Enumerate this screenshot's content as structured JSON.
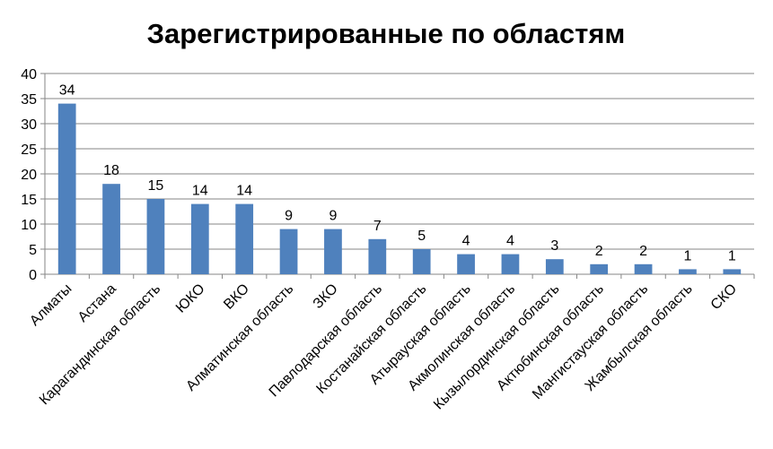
{
  "chart_data": {
    "type": "bar",
    "title": "Зарегистрированные по областям",
    "xlabel": "",
    "ylabel": "",
    "ylim": [
      0,
      40
    ],
    "yticks": [
      0,
      5,
      10,
      15,
      20,
      25,
      30,
      35,
      40
    ],
    "grid": true,
    "legend": "none",
    "bar_color": "#4f81bd",
    "categories": [
      "Алматы",
      "Астана",
      "Карагандинская область",
      "ЮКО",
      "ВКО",
      "Алматинская область",
      "ЗКО",
      "Павлодарская область",
      "Костанайская область",
      "Атырауская область",
      "Акмолинская область",
      "Кызылординская область",
      "Актюбинская область",
      "Мангистауская область",
      "Жамбылская область",
      "СКО"
    ],
    "values": [
      34,
      18,
      15,
      14,
      14,
      9,
      9,
      7,
      5,
      4,
      4,
      3,
      2,
      2,
      1,
      1
    ]
  }
}
